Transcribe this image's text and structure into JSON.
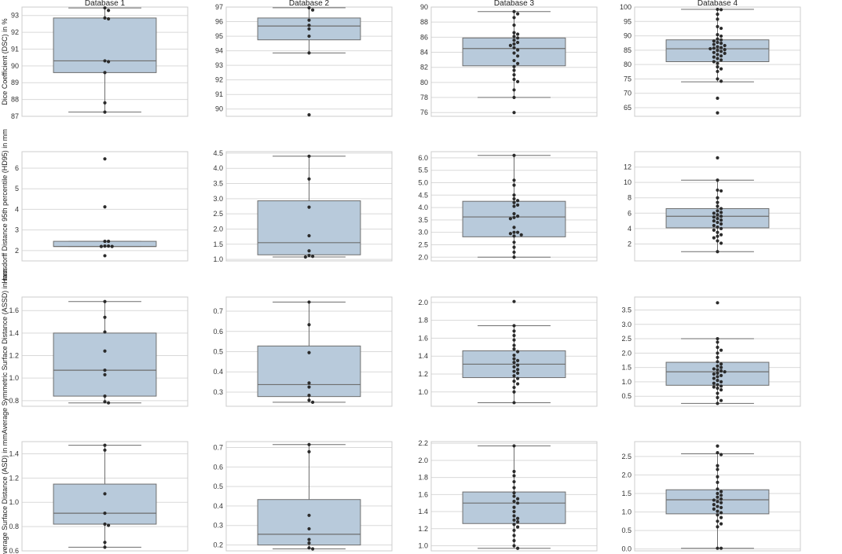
{
  "figure": {
    "columns": [
      "Database 1",
      "Database 2",
      "Database 3",
      "Database 4"
    ],
    "row_labels": [
      "Dice Coefficient (DSC) in %",
      "Hausdorff Distance 95th percentile (HD95) in mm",
      "Average Symmetric Surface Distance (ASSD) in mm",
      "Average Surface Distance (ASD) in mm"
    ]
  },
  "colors": {
    "box_fill": "#b8cadb",
    "box_edge": "#6e6e6e",
    "point": "#2b2b2b",
    "grid": "#d9d9d9",
    "frame": "#cccccc"
  },
  "chart_data": [
    {
      "type": "box",
      "database": "Database 1",
      "metric": "DSC",
      "ylim": [
        87,
        93.5
      ],
      "yticks": [
        "87",
        "88",
        "89",
        "90",
        "91",
        "92",
        "93"
      ],
      "q1": 89.6,
      "median": 90.3,
      "q3": 92.85,
      "whisker_low": 87.25,
      "whisker_high": 93.45,
      "points": [
        93.45,
        93.3,
        92.85,
        92.8,
        90.3,
        90.25,
        89.6,
        87.8,
        87.25
      ]
    },
    {
      "type": "box",
      "database": "Database 2",
      "metric": "DSC",
      "ylim": [
        89.5,
        97
      ],
      "yticks": [
        "90",
        "91",
        "92",
        "93",
        "94",
        "95",
        "96",
        "97"
      ],
      "q1": 94.75,
      "median": 95.7,
      "q3": 96.25,
      "whisker_low": 93.85,
      "whisker_high": 96.95,
      "points": [
        96.95,
        96.8,
        96.1,
        95.75,
        95.5,
        95.0,
        93.85,
        89.6
      ]
    },
    {
      "type": "box",
      "database": "Database 3",
      "metric": "DSC",
      "ylim": [
        75.5,
        90
      ],
      "yticks": [
        "76",
        "78",
        "80",
        "82",
        "84",
        "86",
        "88",
        "90"
      ],
      "q1": 82.2,
      "median": 84.5,
      "q3": 85.9,
      "whisker_low": 78.0,
      "whisker_high": 89.4,
      "points": [
        89.4,
        89.1,
        88.6,
        87.6,
        86.6,
        86.4,
        86.1,
        85.9,
        85.6,
        85.3,
        85.1,
        84.9,
        84.6,
        84.3,
        83.9,
        83.5,
        82.9,
        82.5,
        82.1,
        81.6,
        81.0,
        80.4,
        80.1,
        79.0,
        78.0,
        76.0
      ]
    },
    {
      "type": "box",
      "database": "Database 4",
      "metric": "DSC",
      "ylim": [
        62,
        100
      ],
      "yticks": [
        "65",
        "70",
        "75",
        "80",
        "85",
        "90",
        "95",
        "100"
      ],
      "q1": 81.0,
      "median": 85.5,
      "q3": 88.6,
      "whisker_low": 74.0,
      "whisker_high": 99.2,
      "points": [
        99.2,
        99.1,
        97.5,
        95.8,
        93.2,
        92.6,
        90.4,
        89.9,
        88.9,
        88.6,
        88.2,
        87.7,
        87.4,
        87.0,
        86.6,
        86.2,
        85.9,
        85.7,
        85.5,
        85.2,
        84.9,
        84.6,
        84.2,
        83.9,
        83.5,
        83.0,
        82.6,
        82.1,
        81.6,
        81.0,
        80.4,
        79.2,
        78.5,
        77.6,
        75.0,
        74.2,
        68.3,
        63.2
      ]
    },
    {
      "type": "box",
      "database": "Database 1",
      "metric": "HD95",
      "ylim": [
        1.5,
        6.8
      ],
      "yticks": [
        "2",
        "3",
        "4",
        "5",
        "6"
      ],
      "q1": 2.2,
      "median": 2.2,
      "q3": 2.45,
      "whisker_low": 2.2,
      "whisker_high": 2.45,
      "points": [
        6.45,
        4.12,
        2.45,
        2.45,
        2.22,
        2.22,
        2.2,
        2.2,
        1.75
      ]
    },
    {
      "type": "box",
      "database": "Database 2",
      "metric": "HD95",
      "ylim": [
        0.95,
        4.55
      ],
      "yticks": [
        "1.0",
        "1.5",
        "2.0",
        "2.5",
        "3.0",
        "3.5",
        "4.0",
        "4.5"
      ],
      "q1": 1.15,
      "median": 1.55,
      "q3": 2.93,
      "whisker_low": 1.08,
      "whisker_high": 4.4,
      "points": [
        4.4,
        3.65,
        2.72,
        1.78,
        1.28,
        1.13,
        1.1,
        1.08
      ]
    },
    {
      "type": "box",
      "database": "Database 3",
      "metric": "HD95",
      "ylim": [
        1.85,
        6.25
      ],
      "yticks": [
        "2.0",
        "2.5",
        "3.0",
        "3.5",
        "4.0",
        "4.5",
        "5.0",
        "5.5",
        "6.0"
      ],
      "q1": 2.82,
      "median": 3.62,
      "q3": 4.25,
      "whisker_low": 2.0,
      "whisker_high": 6.1,
      "points": [
        6.1,
        5.1,
        4.9,
        4.5,
        4.35,
        4.28,
        4.2,
        4.1,
        4.05,
        3.75,
        3.65,
        3.6,
        3.55,
        3.2,
        3.0,
        3.0,
        2.95,
        2.9,
        2.85,
        2.6,
        2.4,
        2.2,
        2.0
      ]
    },
    {
      "type": "box",
      "database": "Database 4",
      "metric": "HD95",
      "ylim": [
        -0.2,
        14
      ],
      "yticks": [
        "2",
        "4",
        "6",
        "8",
        "10",
        "12"
      ],
      "q1": 4.1,
      "median": 5.6,
      "q3": 6.6,
      "whisker_low": 1.0,
      "whisker_high": 10.3,
      "points": [
        13.2,
        10.3,
        9.0,
        8.9,
        8.0,
        7.4,
        6.9,
        6.6,
        6.3,
        6.1,
        6.0,
        5.8,
        5.6,
        5.5,
        5.3,
        5.1,
        5.0,
        4.8,
        4.6,
        4.4,
        4.2,
        4.0,
        3.8,
        3.5,
        3.2,
        3.0,
        2.8,
        2.4,
        2.1,
        1.0
      ]
    },
    {
      "type": "box",
      "database": "Database 1",
      "metric": "ASSD",
      "ylim": [
        0.75,
        1.72
      ],
      "yticks": [
        "0.8",
        "1.0",
        "1.2",
        "1.4",
        "1.6"
      ],
      "q1": 0.84,
      "median": 1.07,
      "q3": 1.4,
      "whisker_low": 0.78,
      "whisker_high": 1.68,
      "points": [
        1.68,
        1.54,
        1.41,
        1.24,
        1.07,
        1.03,
        0.84,
        0.79,
        0.78
      ]
    },
    {
      "type": "box",
      "database": "Database 2",
      "metric": "ASSD",
      "ylim": [
        0.23,
        0.77
      ],
      "yticks": [
        "0.3",
        "0.4",
        "0.5",
        "0.6",
        "0.7"
      ],
      "q1": 0.278,
      "median": 0.337,
      "q3": 0.528,
      "whisker_low": 0.25,
      "whisker_high": 0.745,
      "points": [
        0.745,
        0.633,
        0.495,
        0.345,
        0.325,
        0.284,
        0.26,
        0.25
      ]
    },
    {
      "type": "box",
      "database": "Database 3",
      "metric": "ASSD",
      "ylim": [
        0.84,
        2.06
      ],
      "yticks": [
        "1.0",
        "1.2",
        "1.4",
        "1.6",
        "1.8",
        "2.0"
      ],
      "q1": 1.16,
      "median": 1.31,
      "q3": 1.46,
      "whisker_low": 0.88,
      "whisker_high": 1.74,
      "points": [
        2.01,
        1.74,
        1.68,
        1.63,
        1.58,
        1.52,
        1.48,
        1.45,
        1.41,
        1.37,
        1.35,
        1.33,
        1.3,
        1.28,
        1.25,
        1.23,
        1.21,
        1.18,
        1.15,
        1.12,
        1.09,
        1.05,
        1.0,
        0.88
      ]
    },
    {
      "type": "box",
      "database": "Database 4",
      "metric": "ASSD",
      "ylim": [
        0.15,
        3.95
      ],
      "yticks": [
        "0.5",
        "1.0",
        "1.5",
        "2.0",
        "2.5",
        "3.0",
        "3.5"
      ],
      "q1": 0.88,
      "median": 1.35,
      "q3": 1.68,
      "whisker_low": 0.25,
      "whisker_high": 2.5,
      "points": [
        3.75,
        2.5,
        2.38,
        2.2,
        2.1,
        2.0,
        1.85,
        1.7,
        1.62,
        1.55,
        1.5,
        1.45,
        1.42,
        1.38,
        1.35,
        1.3,
        1.27,
        1.22,
        1.18,
        1.12,
        1.05,
        1.0,
        0.95,
        0.9,
        0.85,
        0.82,
        0.78,
        0.72,
        0.6,
        0.45,
        0.35,
        0.25
      ]
    },
    {
      "type": "box",
      "database": "Database 1",
      "metric": "ASD",
      "ylim": [
        0.6,
        1.5
      ],
      "yticks": [
        "0.6",
        "0.8",
        "1.0",
        "1.2",
        "1.4"
      ],
      "q1": 0.82,
      "median": 0.91,
      "q3": 1.15,
      "whisker_low": 0.63,
      "whisker_high": 1.47,
      "points": [
        1.47,
        1.43,
        1.07,
        0.91,
        0.82,
        0.81,
        0.67,
        0.63
      ]
    },
    {
      "type": "box",
      "database": "Database 2",
      "metric": "ASD",
      "ylim": [
        0.17,
        0.73
      ],
      "yticks": [
        "0.2",
        "0.3",
        "0.4",
        "0.5",
        "0.6",
        "0.7"
      ],
      "q1": 0.2,
      "median": 0.255,
      "q3": 0.433,
      "whisker_low": 0.18,
      "whisker_high": 0.715,
      "points": [
        0.715,
        0.678,
        0.352,
        0.283,
        0.228,
        0.21,
        0.185,
        0.18
      ]
    },
    {
      "type": "box",
      "database": "Database 3",
      "metric": "ASD",
      "ylim": [
        0.94,
        2.22
      ],
      "yticks": [
        "1.0",
        "1.2",
        "1.4",
        "1.6",
        "1.8",
        "2.0",
        "2.2"
      ],
      "q1": 1.26,
      "median": 1.5,
      "q3": 1.63,
      "whisker_low": 0.97,
      "whisker_high": 2.17,
      "points": [
        2.17,
        1.87,
        1.82,
        1.75,
        1.68,
        1.62,
        1.58,
        1.55,
        1.52,
        1.5,
        1.45,
        1.4,
        1.35,
        1.32,
        1.3,
        1.28,
        1.25,
        1.22,
        1.18,
        1.12,
        1.06,
        1.0,
        0.97
      ]
    },
    {
      "type": "box",
      "database": "Database 4",
      "metric": "ASD",
      "ylim": [
        -0.05,
        2.9
      ],
      "yticks": [
        "0.0",
        "0.5",
        "1.0",
        "1.5",
        "2.0",
        "2.5"
      ],
      "q1": 0.95,
      "median": 1.33,
      "q3": 1.6,
      "whisker_low": 0.02,
      "whisker_high": 2.57,
      "points": [
        2.78,
        2.6,
        2.55,
        2.25,
        2.15,
        1.95,
        1.8,
        1.62,
        1.55,
        1.5,
        1.45,
        1.4,
        1.35,
        1.32,
        1.28,
        1.25,
        1.2,
        1.15,
        1.12,
        1.08,
        1.02,
        0.98,
        0.92,
        0.85,
        0.75,
        0.68,
        0.6,
        0.02,
        0.02
      ]
    }
  ]
}
